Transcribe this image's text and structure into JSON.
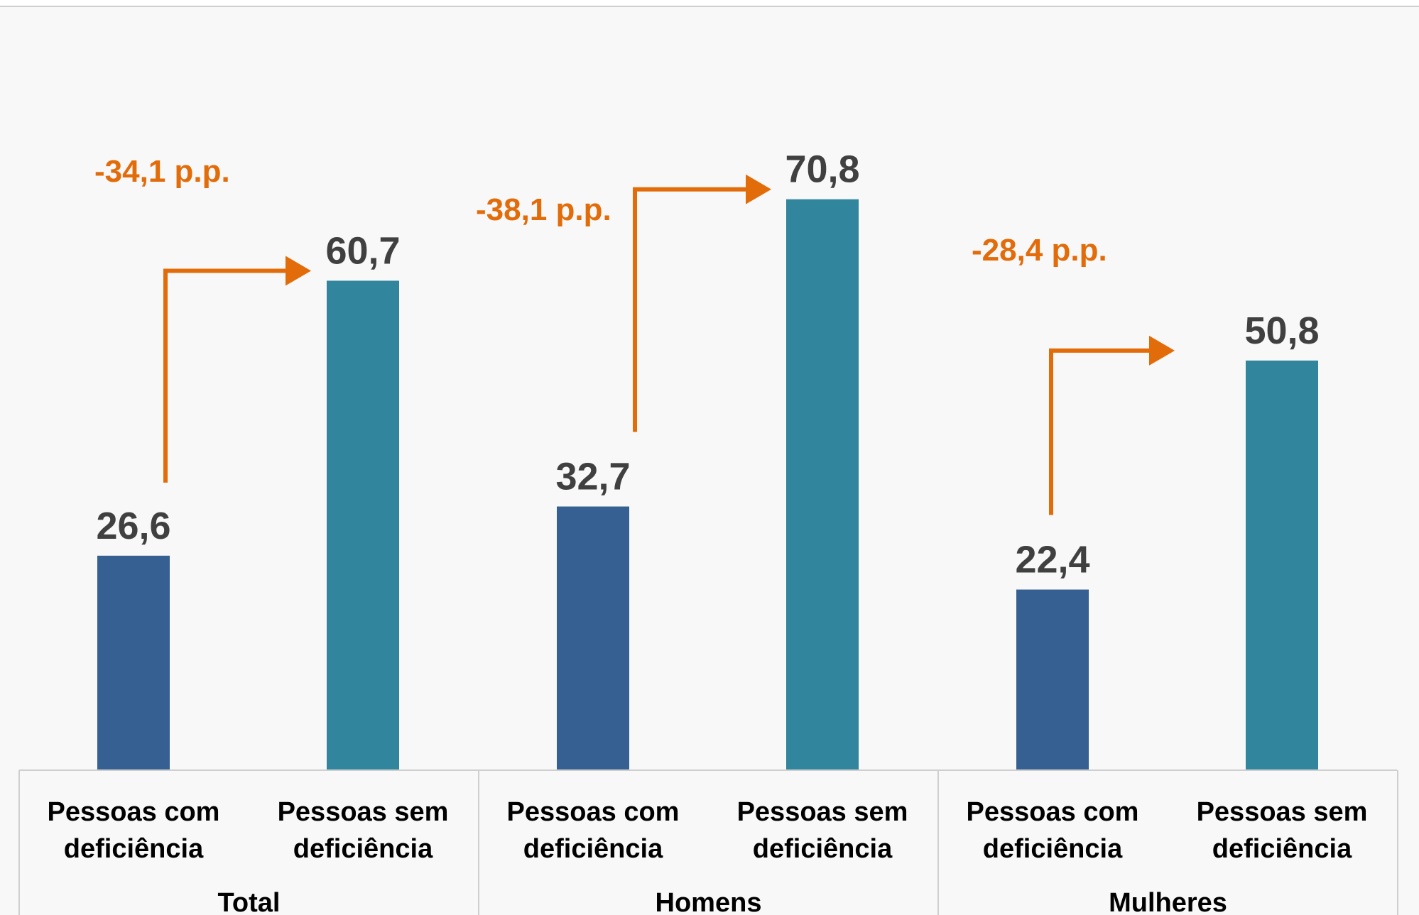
{
  "chart_data": {
    "type": "bar",
    "groups": [
      "Total",
      "Homens",
      "Mulheres"
    ],
    "categories": [
      "Pessoas com deficiência",
      "Pessoas sem deficiência"
    ],
    "series": [
      {
        "values": [
          26.6,
          60.7
        ]
      },
      {
        "values": [
          32.7,
          70.8
        ]
      },
      {
        "values": [
          22.4,
          50.8
        ]
      }
    ],
    "value_labels": [
      [
        "26,6",
        "60,7"
      ],
      [
        "32,7",
        "70,8"
      ],
      [
        "22,4",
        "50,8"
      ]
    ],
    "differences": [
      "-34,1 p.p.",
      "-38,1 p.p.",
      "-28,4 p.p."
    ],
    "category_label_lines": [
      [
        "Pessoas com",
        "deficiência"
      ],
      [
        "Pessoas sem",
        "deficiência"
      ]
    ],
    "ylim": [
      0,
      80
    ],
    "grid": false,
    "legend": "none"
  },
  "colors": {
    "com_deficiencia": "#376092",
    "sem_deficiencia": "#31859c",
    "difference_arrow": "#e36c0a",
    "value_text": "#404040"
  }
}
